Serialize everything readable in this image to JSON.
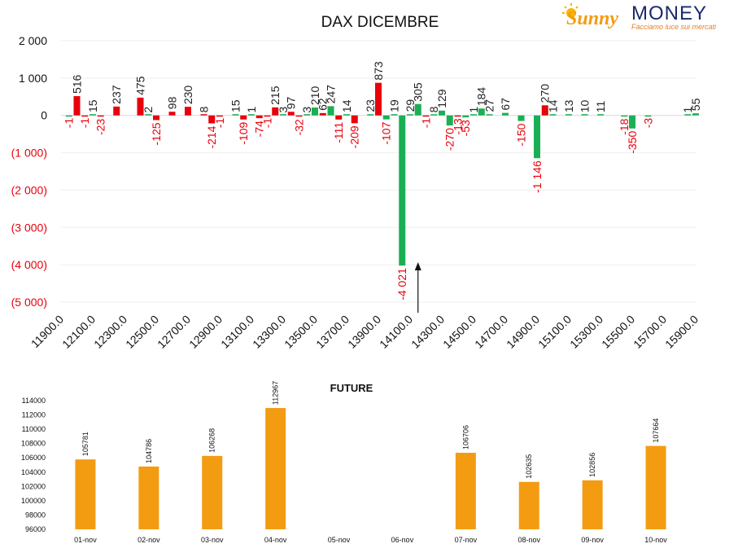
{
  "logo": {
    "brand_left": "Sunny",
    "brand_right": "MONEY",
    "tagline": "Facciamo luce sui mercati"
  },
  "chart_data": [
    {
      "type": "bar",
      "title": "DAX DICEMBRE",
      "ylim": [
        -5000,
        2000
      ],
      "yticks": [
        2000,
        1000,
        0,
        -1000,
        -2000,
        -3000,
        -4000,
        -5000
      ],
      "ytick_labels": [
        "2 000",
        "1 000",
        "0",
        "(1 000)",
        "(2 000)",
        "(3 000)",
        "(4 000)",
        "(5 000)"
      ],
      "x_tick_labels": [
        "11900.0",
        "12100.0",
        "12300.0",
        "12500.0",
        "12700.0",
        "12900.0",
        "13100.0",
        "13300.0",
        "13500.0",
        "13700.0",
        "13900.0",
        "14100.0",
        "14300.0",
        "14500.0",
        "14700.0",
        "14900.0",
        "15100.0",
        "15300.0",
        "15500.0",
        "15700.0",
        "15900.0"
      ],
      "grid": true,
      "colors": {
        "positive_red": "#e8000b",
        "green": "#1aaf54",
        "negative_label": "#e8000b",
        "positive_label": "#222222"
      },
      "arrow_marker_x": 14150,
      "bars": [
        {
          "x": 11950,
          "value": -1,
          "color": "green"
        },
        {
          "x": 12000,
          "value": 516,
          "color": "red"
        },
        {
          "x": 12050,
          "value": -1,
          "color": "red"
        },
        {
          "x": 12100,
          "value": 15,
          "color": "green"
        },
        {
          "x": 12150,
          "value": -23,
          "color": "red"
        },
        {
          "x": 12250,
          "value": 237,
          "color": "red"
        },
        {
          "x": 12400,
          "value": 475,
          "color": "red"
        },
        {
          "x": 12450,
          "value": 2,
          "color": "green"
        },
        {
          "x": 12500,
          "value": -125,
          "color": "red"
        },
        {
          "x": 12600,
          "value": 98,
          "color": "red"
        },
        {
          "x": 12700,
          "value": 230,
          "color": "red"
        },
        {
          "x": 12800,
          "value": 8,
          "color": "red"
        },
        {
          "x": 12850,
          "value": -214,
          "color": "red"
        },
        {
          "x": 12900,
          "value": -1,
          "color": "red"
        },
        {
          "x": 13000,
          "value": 15,
          "color": "green"
        },
        {
          "x": 13050,
          "value": -109,
          "color": "red"
        },
        {
          "x": 13100,
          "value": 1,
          "color": "green"
        },
        {
          "x": 13150,
          "value": -74,
          "color": "red"
        },
        {
          "x": 13200,
          "value": -1,
          "color": "red"
        },
        {
          "x": 13250,
          "value": 215,
          "color": "red"
        },
        {
          "x": 13300,
          "value": 3,
          "color": "green"
        },
        {
          "x": 13350,
          "value": 97,
          "color": "red"
        },
        {
          "x": 13400,
          "value": -32,
          "color": "red"
        },
        {
          "x": 13450,
          "value": 3,
          "color": "green"
        },
        {
          "x": 13500,
          "value": 210,
          "color": "green"
        },
        {
          "x": 13550,
          "value": 62,
          "color": "red"
        },
        {
          "x": 13600,
          "value": 247,
          "color": "green"
        },
        {
          "x": 13650,
          "value": -111,
          "color": "red"
        },
        {
          "x": 13700,
          "value": 14,
          "color": "green"
        },
        {
          "x": 13750,
          "value": -209,
          "color": "red"
        },
        {
          "x": 13850,
          "value": 23,
          "color": "green"
        },
        {
          "x": 13900,
          "value": 873,
          "color": "red"
        },
        {
          "x": 13950,
          "value": -107,
          "color": "green"
        },
        {
          "x": 14000,
          "value": 19,
          "color": "green"
        },
        {
          "x": 14050,
          "value": -4021,
          "color": "green"
        },
        {
          "x": 14100,
          "value": 29,
          "color": "green"
        },
        {
          "x": 14150,
          "value": 305,
          "color": "green"
        },
        {
          "x": 14200,
          "value": -1,
          "color": "red"
        },
        {
          "x": 14250,
          "value": 8,
          "color": "green"
        },
        {
          "x": 14300,
          "value": 129,
          "color": "green"
        },
        {
          "x": 14350,
          "value": -270,
          "color": "green"
        },
        {
          "x": 14400,
          "value": -13,
          "color": "red"
        },
        {
          "x": 14450,
          "value": -53,
          "color": "green"
        },
        {
          "x": 14500,
          "value": 1,
          "color": "green"
        },
        {
          "x": 14550,
          "value": 184,
          "color": "green"
        },
        {
          "x": 14600,
          "value": 27,
          "color": "green"
        },
        {
          "x": 14700,
          "value": 67,
          "color": "green"
        },
        {
          "x": 14800,
          "value": -150,
          "color": "green"
        },
        {
          "x": 14900,
          "value": -1146,
          "color": "green"
        },
        {
          "x": 14950,
          "value": 270,
          "color": "red"
        },
        {
          "x": 15000,
          "value": 14,
          "color": "green"
        },
        {
          "x": 15100,
          "value": 13,
          "color": "green"
        },
        {
          "x": 15200,
          "value": 10,
          "color": "green"
        },
        {
          "x": 15300,
          "value": 11,
          "color": "green"
        },
        {
          "x": 15450,
          "value": -18,
          "color": "green"
        },
        {
          "x": 15500,
          "value": -350,
          "color": "green"
        },
        {
          "x": 15600,
          "value": -3,
          "color": "green"
        },
        {
          "x": 15850,
          "value": 1,
          "color": "green"
        },
        {
          "x": 15900,
          "value": 55,
          "color": "green"
        }
      ]
    },
    {
      "type": "bar",
      "title": "FUTURE",
      "categories": [
        "01-nov",
        "02-nov",
        "03-nov",
        "04-nov",
        "05-nov",
        "06-nov",
        "07-nov",
        "08-nov",
        "09-nov",
        "10-nov"
      ],
      "values": [
        105781,
        104786,
        106268,
        112967,
        null,
        null,
        106706,
        102635,
        102856,
        107664
      ],
      "ylim": [
        96000,
        114000
      ],
      "yticks": [
        96000,
        98000,
        100000,
        102000,
        104000,
        106000,
        108000,
        110000,
        112000,
        114000
      ],
      "ytick_labels": [
        "96000",
        "98000",
        "100000",
        "102000",
        "104000",
        "106000",
        "108000",
        "110000",
        "112000",
        "114000"
      ],
      "color": "#f39c12",
      "grid": false
    }
  ]
}
